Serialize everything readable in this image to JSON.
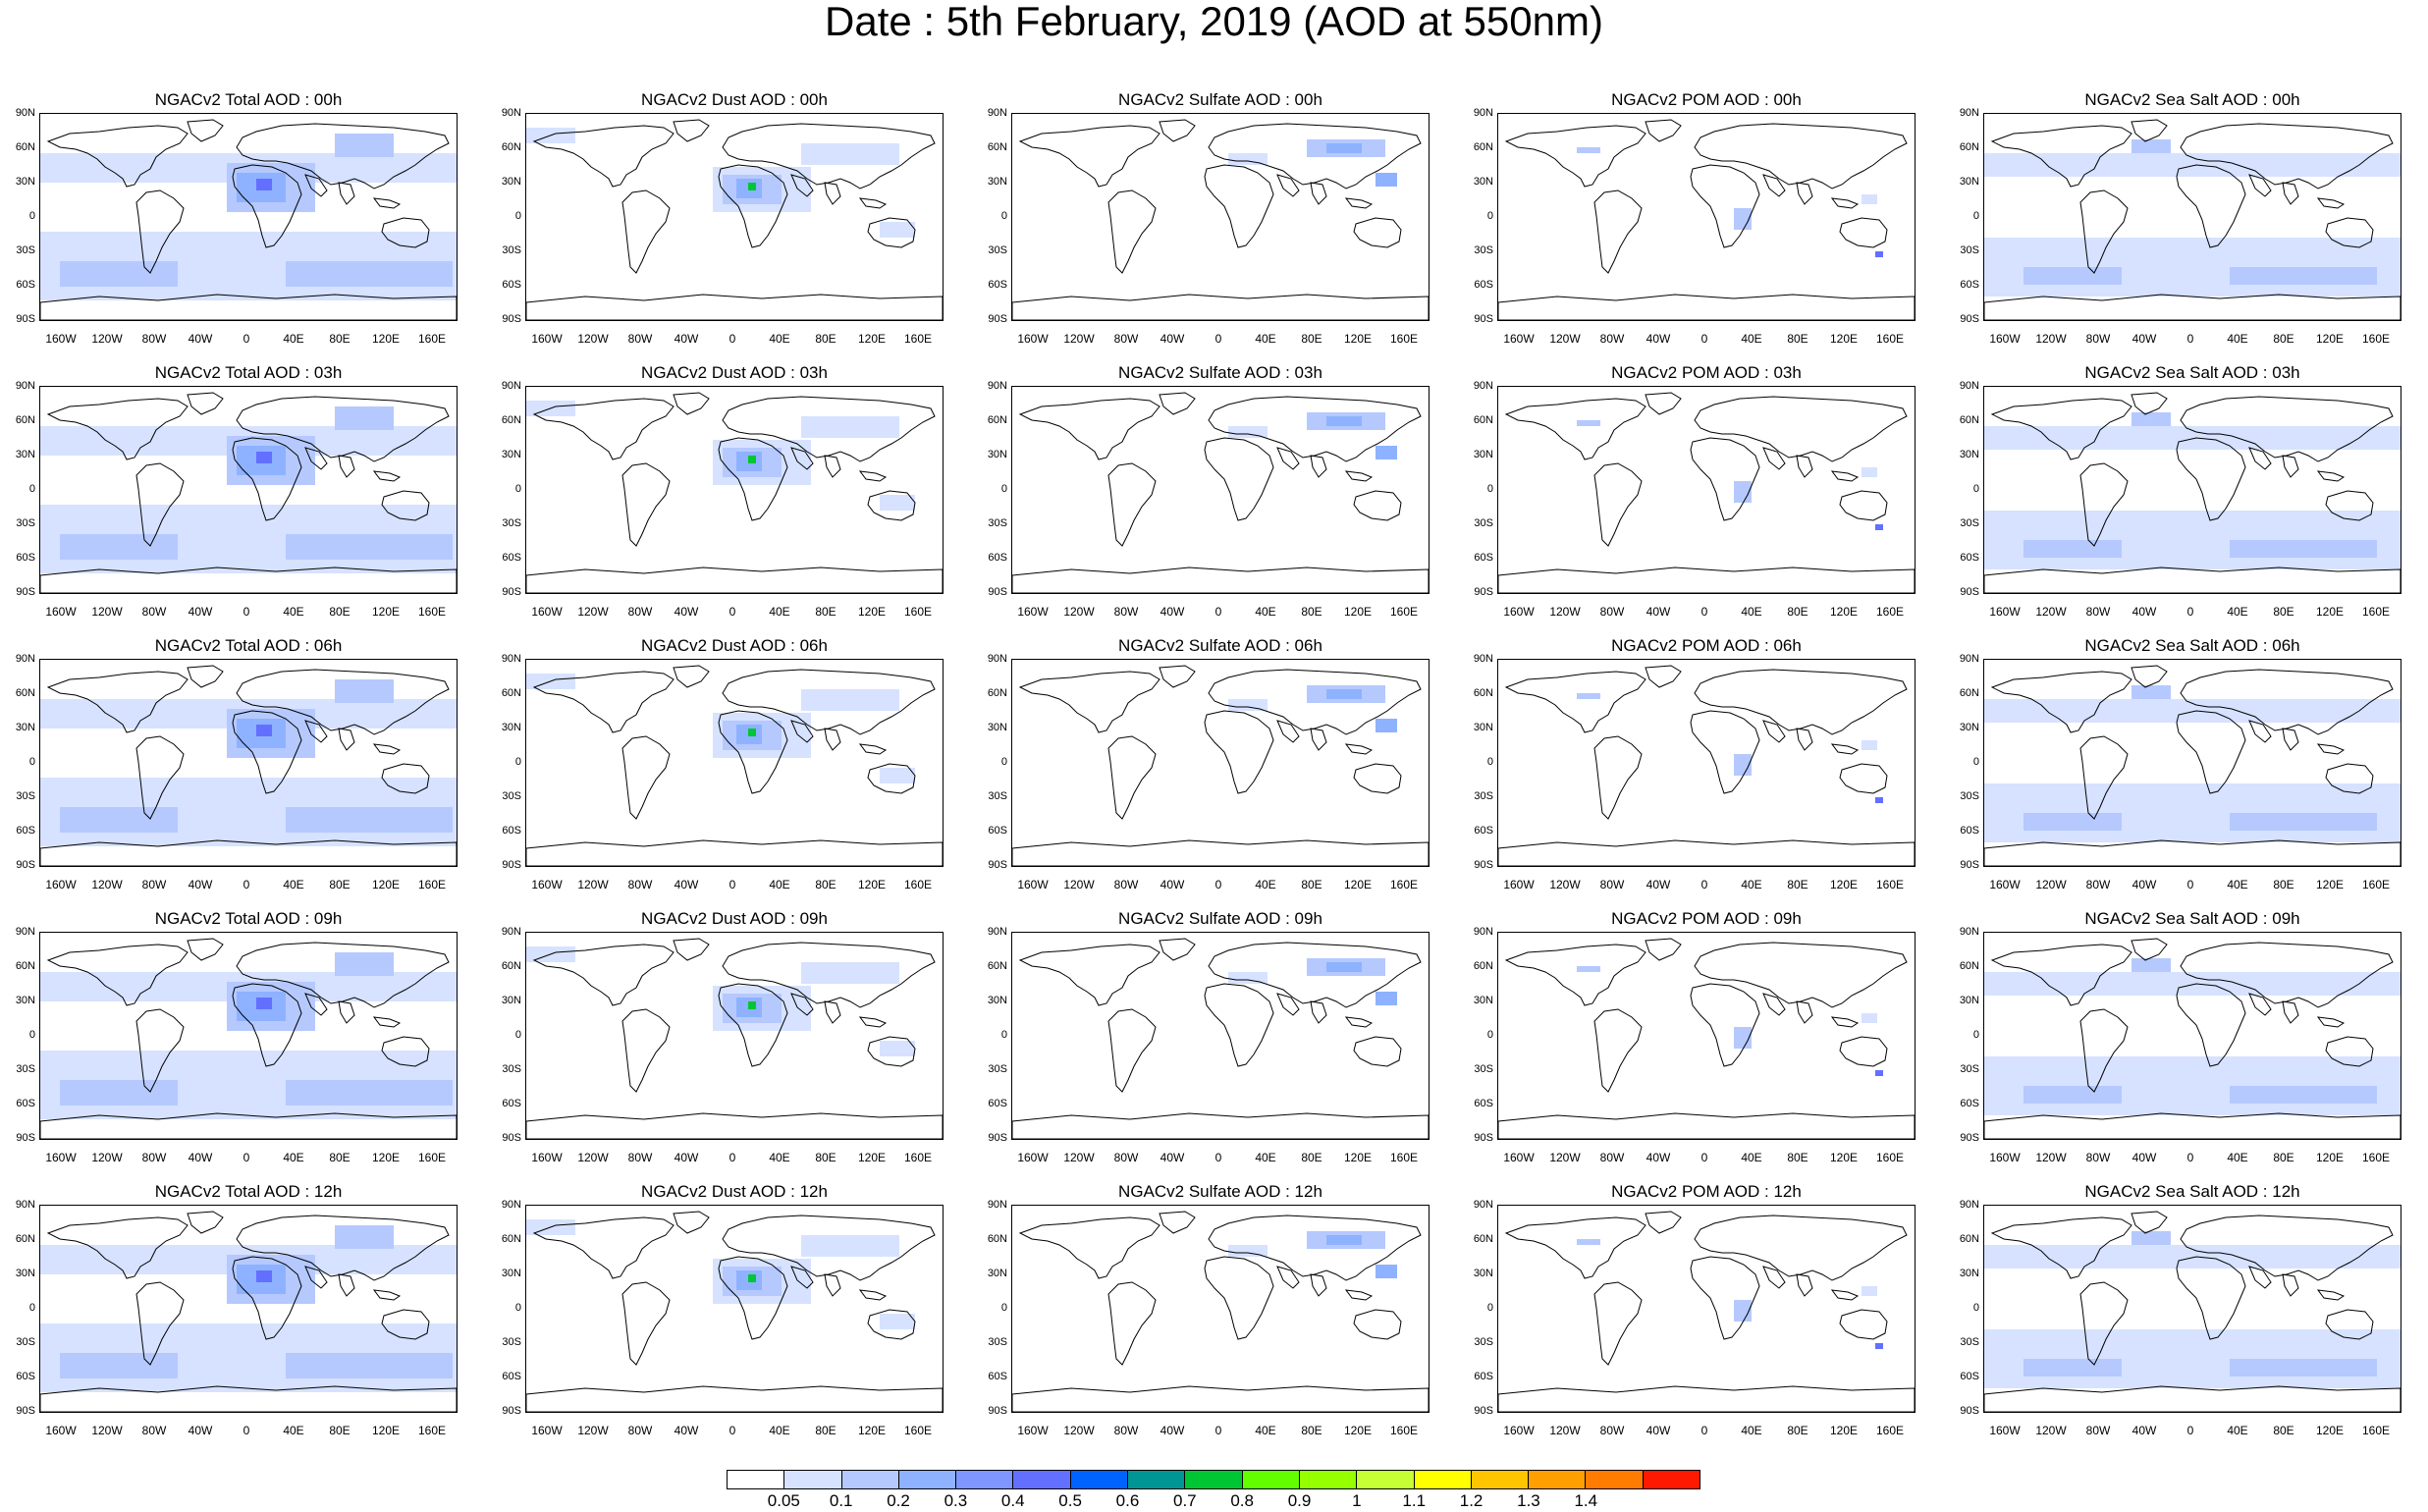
{
  "title": "Date : 5th February, 2019 (AOD at 550nm)",
  "lat_labels": [
    "90N",
    "60N",
    "30N",
    "0",
    "30S",
    "60S",
    "90S"
  ],
  "lon_labels": [
    "160W",
    "120W",
    "80W",
    "40W",
    "0",
    "40E",
    "80E",
    "120E",
    "160E"
  ],
  "rows": [
    [
      "NGACv2 Total AOD : 00h",
      "NGACv2 Dust AOD : 00h",
      "NGACv2 Sulfate AOD : 00h",
      "NGACv2 POM AOD : 00h",
      "NGACv2 Sea Salt AOD : 00h"
    ],
    [
      "NGACv2 Total AOD : 03h",
      "NGACv2 Dust AOD : 03h",
      "NGACv2 Sulfate AOD : 03h",
      "NGACv2 POM AOD : 03h",
      "NGACv2 Sea Salt AOD : 03h"
    ],
    [
      "NGACv2 Total AOD : 06h",
      "NGACv2 Dust AOD : 06h",
      "NGACv2 Sulfate AOD : 06h",
      "NGACv2 POM AOD : 06h",
      "NGACv2 Sea Salt AOD : 06h"
    ],
    [
      "NGACv2 Total AOD : 09h",
      "NGACv2 Dust AOD : 09h",
      "NGACv2 Sulfate AOD : 09h",
      "NGACv2 POM AOD : 09h",
      "NGACv2 Sea Salt  AOD : 09h"
    ],
    [
      "NGACv2 Total AOD : 12h",
      "NGACv2 Dust AOD : 12h",
      "NGACv2 Sulfate AOD : 12h",
      "NGACv2 POM  AOD : 12h",
      "NGACv2 Sea Salt AOD : 12h"
    ]
  ],
  "colorbar": {
    "colors": [
      "#ffffff",
      "#d6e2ff",
      "#b5c9ff",
      "#8eb2ff",
      "#7f96ff",
      "#6370ff",
      "#0063ff",
      "#009696",
      "#00c633",
      "#63ff00",
      "#96ff00",
      "#c6ff33",
      "#ffff00",
      "#ffc600",
      "#ffa000",
      "#ff7c00",
      "#ff1900"
    ],
    "labels": [
      "0.05",
      "0.1",
      "0.2",
      "0.3",
      "0.4",
      "0.5",
      "0.6",
      "0.7",
      "0.8",
      "0.9",
      "1",
      "1.1",
      "1.2",
      "1.3",
      "1.4"
    ]
  }
}
